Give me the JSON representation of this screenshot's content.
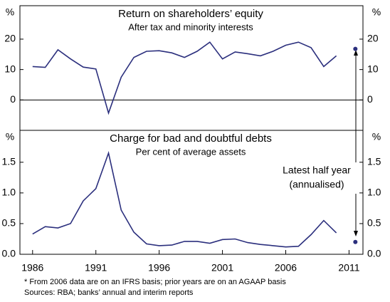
{
  "chart_data": [
    {
      "type": "line",
      "title": "Return on shareholders’ equity",
      "subtitle": "After tax and minority interests",
      "y_unit": "%",
      "color": "#2b2f7d",
      "x": [
        1986,
        1987,
        1988,
        1989,
        1990,
        1991,
        1992,
        1993,
        1994,
        1995,
        1996,
        1997,
        1998,
        1999,
        2000,
        2001,
        2002,
        2003,
        2004,
        2005,
        2006,
        2007,
        2008,
        2009,
        2010
      ],
      "values": [
        11,
        10.7,
        16.5,
        13.5,
        10.8,
        10.2,
        -4.3,
        7.5,
        14,
        16,
        16.2,
        15.5,
        14,
        16,
        19,
        13.5,
        15.8,
        15.2,
        14.5,
        16,
        18,
        19,
        17.2,
        11,
        14.5
      ],
      "latest": {
        "x": 2011.5,
        "value": 16.8
      },
      "xlim": [
        1985,
        2012.1
      ],
      "ylim": [
        -10,
        31
      ],
      "yticks": [
        0,
        10,
        20
      ],
      "zero_line": true
    },
    {
      "type": "line",
      "title": "Charge for bad and doubtful debts",
      "subtitle": "Per cent of average assets",
      "y_unit": "%",
      "color": "#2b2f7d",
      "x": [
        1986,
        1987,
        1988,
        1989,
        1990,
        1991,
        1992,
        1993,
        1994,
        1995,
        1996,
        1997,
        1998,
        1999,
        2000,
        2001,
        2002,
        2003,
        2004,
        2005,
        2006,
        2007,
        2008,
        2009,
        2010
      ],
      "values": [
        0.33,
        0.45,
        0.43,
        0.5,
        0.87,
        1.07,
        1.65,
        0.72,
        0.36,
        0.17,
        0.14,
        0.15,
        0.21,
        0.21,
        0.18,
        0.24,
        0.25,
        0.19,
        0.16,
        0.14,
        0.12,
        0.13,
        0.32,
        0.55,
        0.35
      ],
      "latest": {
        "x": 2011.5,
        "value": 0.2
      },
      "xlim": [
        1985,
        2012.1
      ],
      "ylim": [
        0,
        2.02
      ],
      "yticks": [
        {
          "value": 0,
          "label": "0.0"
        },
        0.5,
        {
          "value": 1,
          "label": "1.0"
        },
        1.5
      ],
      "xticks": [
        1986,
        1991,
        1996,
        2001,
        2006,
        2011
      ]
    }
  ],
  "annotation": [
    "Latest half year",
    "(annualised)"
  ],
  "notes": [
    "*  From 2006 data are on an IFRS basis; prior years are on an AGAAP basis",
    "Sources: RBA; banks’ annual and interim reports"
  ]
}
